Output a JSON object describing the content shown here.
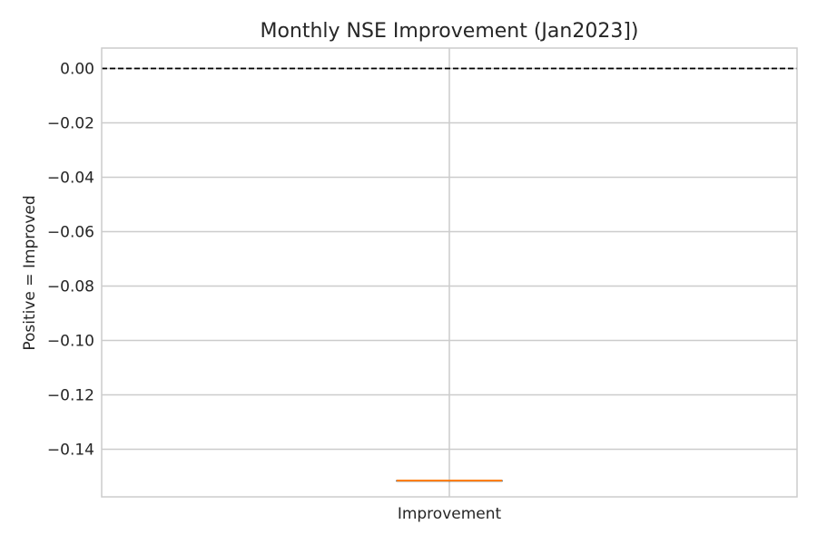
{
  "chart_data": {
    "type": "box",
    "title": "Monthly NSE Improvement (Jan2023])",
    "xlabel": "",
    "ylabel": "Positive = Improved",
    "categories": [
      "Improvement"
    ],
    "series": [
      {
        "name": "Improvement",
        "values": [
          -0.1515
        ],
        "box": {
          "median": -0.1515,
          "q1": -0.1515,
          "q3": -0.1515,
          "whisker_low": -0.1515,
          "whisker_high": -0.1515
        }
      }
    ],
    "ylim": [
      -0.1575,
      0.0075
    ],
    "yticks": [
      0.0,
      -0.02,
      -0.04,
      -0.06,
      -0.08,
      -0.1,
      -0.12,
      -0.14
    ],
    "ytick_labels": [
      "0.00",
      "−0.02",
      "−0.04",
      "−0.06",
      "−0.08",
      "−0.10",
      "−0.12",
      "−0.14"
    ],
    "reference_line": {
      "y": 0.0,
      "style": "dashed",
      "color": "#000000"
    },
    "grid": true,
    "colors": {
      "median": "#ff7f0e",
      "box": "#000000",
      "grid": "#cccccc",
      "frame": "#cccccc"
    }
  }
}
